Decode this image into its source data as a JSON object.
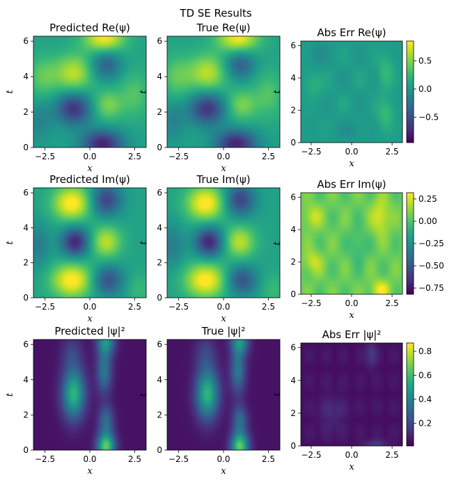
{
  "figure": {
    "suptitle": "TD SE Results"
  },
  "chart_data": {
    "type": "heatmap",
    "colormap": "viridis",
    "colormap_stops": [
      "#440154",
      "#482878",
      "#3e4a89",
      "#31688e",
      "#26828e",
      "#1f9e89",
      "#35b779",
      "#6ece58",
      "#b5de2b",
      "#fde725"
    ],
    "xlim": [
      -3.14159,
      3.14159
    ],
    "ylim": [
      0,
      6.28318
    ],
    "xticks": [
      -2.5,
      0.0,
      2.5
    ],
    "xtick_labels": [
      "−2.5",
      "0.0",
      "2.5"
    ],
    "yticks": [
      0,
      2,
      4,
      6
    ],
    "ytick_labels": [
      "0",
      "2",
      "4",
      "6"
    ],
    "xlabel": "x",
    "ylabel": "t",
    "panels": [
      {
        "title": "Predicted Re(ψ)",
        "field": "re",
        "vmin": -1,
        "vmax": 1
      },
      {
        "title": "True Re(ψ)",
        "field": "re",
        "vmin": -1,
        "vmax": 1
      },
      {
        "title": "Abs Err Re(ψ)",
        "field": "err_re",
        "vmin": -0.95,
        "vmax": 0.85,
        "colorbar_ticks": [
          0.5,
          0.0,
          -0.5
        ],
        "colorbar_labels": [
          "0.5",
          "0.0",
          "−0.5"
        ]
      },
      {
        "title": "Predicted Im(ψ)",
        "field": "im",
        "vmin": -1,
        "vmax": 1
      },
      {
        "title": "True Im(ψ)",
        "field": "im",
        "vmin": -1,
        "vmax": 1
      },
      {
        "title": "Abs Err Im(ψ)",
        "field": "err_im",
        "vmin": -0.82,
        "vmax": 0.32,
        "colorbar_ticks": [
          0.25,
          0.0,
          -0.25,
          -0.5,
          -0.75
        ],
        "colorbar_labels": [
          "0.25",
          "0.00",
          "−0.25",
          "−0.50",
          "−0.75"
        ]
      },
      {
        "title": "Predicted |ψ|²",
        "field": "abs2",
        "vmin": 0,
        "vmax": 1
      },
      {
        "title": "True |ψ|²",
        "field": "abs2",
        "vmin": 0,
        "vmax": 1
      },
      {
        "title": "Abs Err |ψ|²",
        "field": "err_abs2",
        "vmin": 0.01,
        "vmax": 0.87,
        "colorbar_ticks": [
          0.8,
          0.6,
          0.4,
          0.2
        ],
        "colorbar_labels": [
          "0.8",
          "0.6",
          "0.4",
          "0.2"
        ]
      }
    ]
  }
}
